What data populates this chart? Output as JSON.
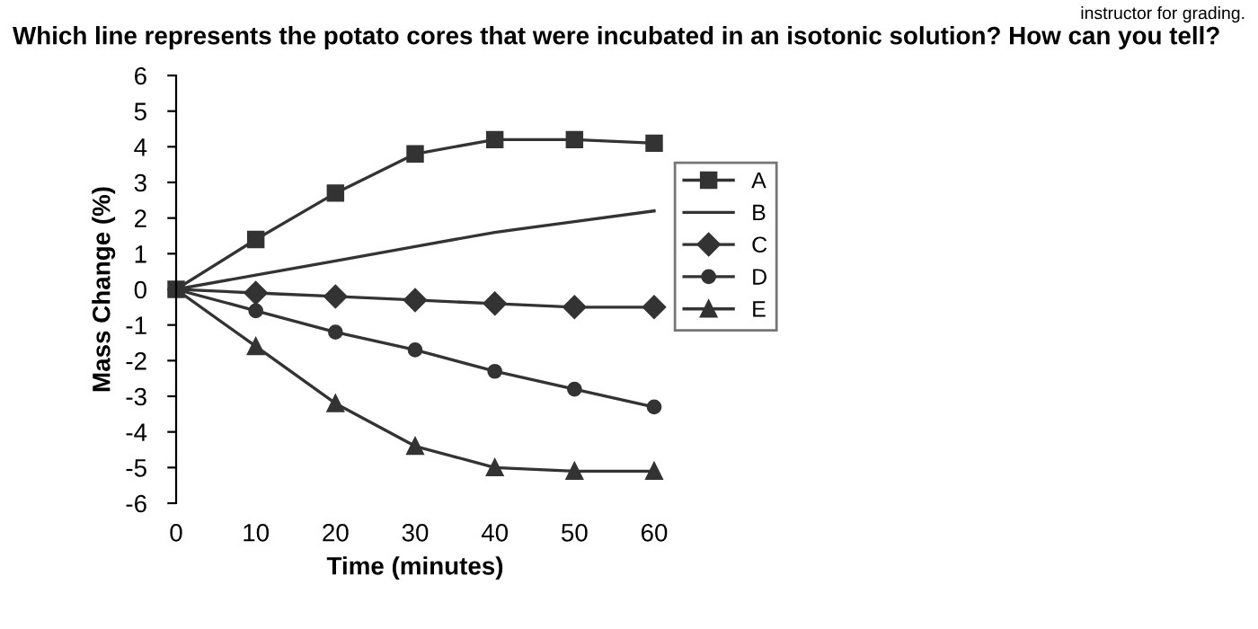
{
  "chart_data": {
    "type": "line",
    "title": "Which line represents the potato cores that were incubated in an isotonic solution? How can you tell?",
    "annotations": [
      "instructor for grading."
    ],
    "xlabel": "Time (minutes)",
    "ylabel": "Mass Change (%)",
    "x": [
      0,
      10,
      20,
      30,
      40,
      50,
      60
    ],
    "series": [
      {
        "name": "A",
        "color": "#333333",
        "marker": "square",
        "values": [
          0,
          1.4,
          2.7,
          3.8,
          4.2,
          4.2,
          4.1
        ]
      },
      {
        "name": "B",
        "color": "#333333",
        "marker": "none",
        "values": [
          0,
          0.4,
          0.8,
          1.2,
          1.6,
          1.9,
          2.2
        ]
      },
      {
        "name": "C",
        "color": "#333333",
        "marker": "diamond",
        "values": [
          0,
          -0.1,
          -0.2,
          -0.3,
          -0.4,
          -0.5,
          -0.5
        ]
      },
      {
        "name": "D",
        "color": "#333333",
        "marker": "circle",
        "values": [
          0,
          -0.6,
          -1.2,
          -1.7,
          -2.3,
          -2.8,
          -3.3
        ]
      },
      {
        "name": "E",
        "color": "#333333",
        "marker": "triangle",
        "values": [
          0,
          -1.6,
          -3.2,
          -4.4,
          -5.0,
          -5.1,
          -5.1
        ]
      }
    ],
    "xlim": [
      0,
      60
    ],
    "xticks": [
      0,
      10,
      20,
      30,
      40,
      50,
      60
    ],
    "ylim": [
      -6,
      6
    ],
    "yticks": [
      -6,
      -5,
      -4,
      -3,
      -2,
      -1,
      0,
      1,
      2,
      3,
      4,
      5,
      6
    ],
    "grid": false,
    "legend": "right",
    "line_style": "solid"
  }
}
